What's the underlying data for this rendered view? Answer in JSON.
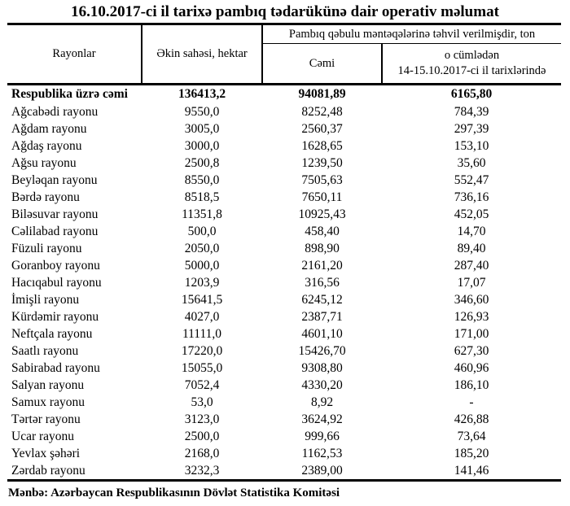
{
  "title": "16.10.2017-ci il tarixə pambıq tədarükünə dair operativ məlumat",
  "table": {
    "headers": {
      "rayonlar": "Rayonlar",
      "ekin_sahesi": "Əkin sahəsi, hektar",
      "qebul_group": "Pambıq qəbulu məntəqələrinə təhvil verilmişdir, ton",
      "cemi": "Cəmi",
      "o_cumleden_line1": "o cümlədən",
      "o_cumleden_line2": "14-15.10.2017-ci il tarixlərində"
    },
    "total_row": {
      "name": "Respublika üzrə cəmi",
      "area": "136413,2",
      "total": "94081,89",
      "recent": "6165,80"
    },
    "rows": [
      {
        "name": "Ağcabədi rayonu",
        "area": "9550,0",
        "total": "8252,48",
        "recent": "784,39"
      },
      {
        "name": "Ağdam rayonu",
        "area": "3005,0",
        "total": "2560,37",
        "recent": "297,39"
      },
      {
        "name": "Ağdaş rayonu",
        "area": "3000,0",
        "total": "1628,65",
        "recent": "153,10"
      },
      {
        "name": "Ağsu rayonu",
        "area": "2500,8",
        "total": "1239,50",
        "recent": "35,60"
      },
      {
        "name": "Beyləqan rayonu",
        "area": "8550,0",
        "total": "7505,63",
        "recent": "552,47"
      },
      {
        "name": "Bərdə rayonu",
        "area": "8518,5",
        "total": "7650,11",
        "recent": "736,16"
      },
      {
        "name": "Biləsuvar rayonu",
        "area": "11351,8",
        "total": "10925,43",
        "recent": "452,05"
      },
      {
        "name": "Cəlilabad rayonu",
        "area": "500,0",
        "total": "458,40",
        "recent": "14,70"
      },
      {
        "name": "Füzuli rayonu",
        "area": "2050,0",
        "total": "898,90",
        "recent": "89,40"
      },
      {
        "name": "Goranboy rayonu",
        "area": "5000,0",
        "total": "2161,20",
        "recent": "287,40"
      },
      {
        "name": "Hacıqabul rayonu",
        "area": "1203,9",
        "total": "316,56",
        "recent": "17,07"
      },
      {
        "name": "İmişli rayonu",
        "area": "15641,5",
        "total": "6245,12",
        "recent": "346,60"
      },
      {
        "name": "Kürdəmir rayonu",
        "area": "4027,0",
        "total": "2387,71",
        "recent": "126,93"
      },
      {
        "name": "Neftçala rayonu",
        "area": "11111,0",
        "total": "4601,10",
        "recent": "171,00"
      },
      {
        "name": "Saatlı rayonu",
        "area": "17220,0",
        "total": "15426,70",
        "recent": "627,30"
      },
      {
        "name": "Sabirabad rayonu",
        "area": "15055,0",
        "total": "9308,80",
        "recent": "460,96"
      },
      {
        "name": "Salyan rayonu",
        "area": "7052,4",
        "total": "4330,20",
        "recent": "186,10"
      },
      {
        "name": "Samux rayonu",
        "area": "53,0",
        "total": "8,92",
        "recent": "-"
      },
      {
        "name": "Tərtər rayonu",
        "area": "3123,0",
        "total": "3624,92",
        "recent": "426,88"
      },
      {
        "name": "Ucar rayonu",
        "area": "2500,0",
        "total": "999,66",
        "recent": "73,64"
      },
      {
        "name": "Yevlax şəhəri",
        "area": "2168,0",
        "total": "1162,53",
        "recent": "185,20"
      },
      {
        "name": "Zərdab rayonu",
        "area": "3232,3",
        "total": "2389,00",
        "recent": "141,46"
      }
    ]
  },
  "footer": {
    "source": "Mənbə: Azərbaycan Respublikasının Dövlət Statistika Komitəsi"
  }
}
